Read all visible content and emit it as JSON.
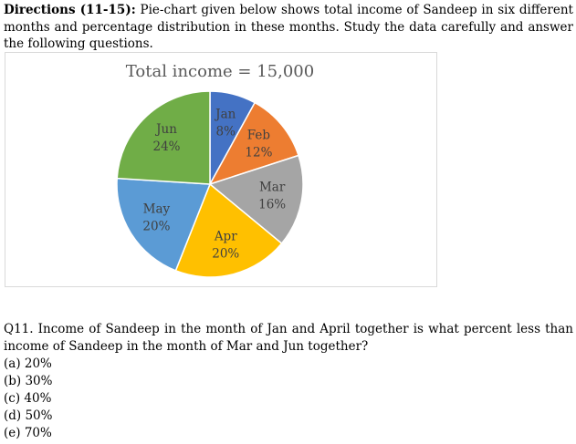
{
  "directions": {
    "heading": "Directions (11-15):",
    "text": "Pie-chart given below shows total income of Sandeep in six different months and percentage distribution in these months. Study the data carefully and answer the following questions."
  },
  "chart_data": {
    "type": "pie",
    "title": "Total income = 15,000",
    "categories": [
      "Jan",
      "Feb",
      "Mar",
      "Apr",
      "May",
      "Jun"
    ],
    "values": [
      8,
      12,
      16,
      20,
      20,
      24
    ],
    "value_labels": [
      "8%",
      "12%",
      "16%",
      "20%",
      "20%",
      "24%"
    ],
    "colors": [
      "#4472c4",
      "#ed7d31",
      "#a5a5a5",
      "#ffc000",
      "#5b9bd5",
      "#70ad47"
    ]
  },
  "question": {
    "text": "Q11. Income of Sandeep in the month of Jan and April together is what percent less than income of Sandeep in the month of Mar and Jun together?",
    "options": [
      "(a) 20%",
      "(b) 30%",
      "(c) 40%",
      "(d) 50%",
      "(e) 70%"
    ]
  }
}
